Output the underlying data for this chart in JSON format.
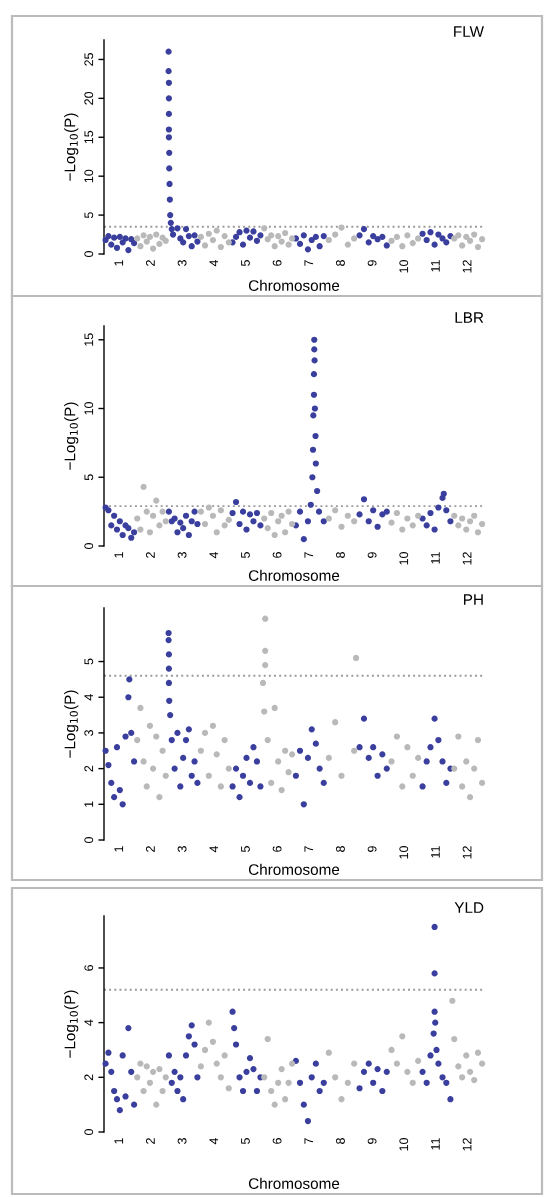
{
  "chart_data": [
    {
      "type": "scatter",
      "title": "FLW",
      "xlabel": "Chromosome",
      "ylabel": "−Log$_{10}$(P)",
      "marker": "circle",
      "grid": false,
      "xlim": [
        0.5,
        12.5
      ],
      "xticks": [
        1,
        2,
        3,
        4,
        5,
        6,
        7,
        8,
        9,
        10,
        11,
        12
      ],
      "ylim": [
        0,
        27.5
      ],
      "yticks": [
        0,
        5,
        10,
        15,
        20,
        25
      ],
      "ref_lines": [
        {
          "axis": "y",
          "value": 3.5,
          "color": "#999999",
          "line_style": "dotted"
        }
      ],
      "series": [
        {
          "color": "#3a3f9e",
          "x": [
            0.55,
            0.64,
            0.73,
            0.82,
            0.91,
            1.0,
            1.09,
            1.18,
            1.27,
            1.36,
            1.45,
            2.54,
            2.54,
            2.55,
            2.55,
            2.55,
            2.55,
            2.55,
            2.56,
            2.56,
            2.57,
            2.58,
            2.59,
            2.61,
            2.64,
            2.68,
            2.82,
            2.91,
            3.0,
            3.09,
            3.18,
            3.27,
            3.36,
            3.45,
            4.56,
            4.67,
            4.78,
            4.89,
            5,
            5.11,
            5.22,
            5.33,
            5.44,
            6.56,
            6.69,
            6.81,
            6.94,
            7.06,
            7.19,
            7.31,
            7.44,
            8.57,
            8.71,
            8.86,
            9,
            9.14,
            9.29,
            9.43,
            10.56,
            10.69,
            10.81,
            10.94,
            11.06,
            11.19,
            11.31,
            11.44
          ],
          "values": [
            1.8,
            2.3,
            1.2,
            2.1,
            0.8,
            2.2,
            1.5,
            2.0,
            0.5,
            1.9,
            1.4,
            26,
            23.5,
            22,
            20,
            18,
            16,
            15,
            13,
            11,
            9,
            7,
            5,
            4,
            3.2,
            2.5,
            3.3,
            2.0,
            1.5,
            3.2,
            2.3,
            1.0,
            2.4,
            1.6,
            1.5,
            2.2,
            2.8,
            1.2,
            3.0,
            2.1,
            2.9,
            1.7,
            2.4,
            2.0,
            1.3,
            2.4,
            0.6,
            1.8,
            2.2,
            1.0,
            2.3,
            2.4,
            3.2,
            1.5,
            2.3,
            1.9,
            2.2,
            1.1,
            2.6,
            1.8,
            2.8,
            1.2,
            2.5,
            2.0,
            1.5,
            2.3
          ]
        },
        {
          "color": "#b9b9b9",
          "x": [
            1.55,
            1.65,
            1.75,
            1.85,
            1.95,
            2.05,
            2.15,
            2.25,
            2.35,
            2.45,
            3.56,
            3.69,
            3.81,
            3.94,
            4.06,
            4.19,
            4.31,
            4.44,
            5.56,
            5.67,
            5.78,
            5.89,
            6,
            6.11,
            6.22,
            6.33,
            6.44,
            7.6,
            7.8,
            8,
            8.2,
            8.4,
            9.58,
            9.75,
            9.92,
            10.08,
            10.25,
            10.42,
            11.56,
            11.69,
            11.81,
            11.94,
            12.06,
            12.19,
            12.31,
            12.44
          ],
          "values": [
            2.0,
            1.0,
            2.4,
            1.6,
            2.2,
            0.7,
            2.5,
            1.3,
            2.1,
            1.7,
            2.2,
            1.1,
            2.6,
            1.8,
            3.0,
            0.9,
            2.3,
            1.5,
            3.3,
            1.9,
            2.4,
            1.0,
            2.3,
            1.6,
            2.7,
            1.2,
            2.0,
            1.8,
            2.5,
            3.4,
            1.2,
            2.0,
            1.7,
            2.2,
            1.0,
            2.4,
            1.4,
            2.0,
            2.0,
            2.4,
            1.1,
            2.2,
            1.7,
            2.5,
            0.9,
            1.9
          ]
        }
      ]
    },
    {
      "type": "scatter",
      "title": "LBR",
      "xlabel": "Chromosome",
      "ylabel": "−Log$_{10}$(P)",
      "marker": "circle",
      "grid": false,
      "xlim": [
        0.5,
        12.5
      ],
      "xticks": [
        1,
        2,
        3,
        4,
        5,
        6,
        7,
        8,
        9,
        10,
        11,
        12
      ],
      "ylim": [
        0,
        16
      ],
      "yticks": [
        0,
        5,
        10,
        15
      ],
      "ref_lines": [
        {
          "axis": "y",
          "value": 2.9,
          "color": "#999999",
          "line_style": "dotted"
        }
      ],
      "series": [
        {
          "color": "#3a3f9e",
          "x": [
            0.55,
            0.64,
            0.73,
            0.82,
            0.91,
            1.0,
            1.09,
            1.18,
            1.27,
            1.36,
            1.45,
            2.55,
            2.64,
            2.73,
            2.82,
            2.91,
            3.0,
            3.09,
            3.18,
            3.27,
            3.36,
            3.45,
            4.56,
            4.67,
            4.78,
            4.89,
            5,
            5.11,
            5.22,
            5.33,
            5.44,
            6.56,
            6.69,
            6.81,
            6.94,
            7.03,
            7.08,
            7.1,
            7.11,
            7.13,
            7.13,
            7.14,
            7.14,
            7.15,
            7.16,
            7.18,
            7.19,
            7.23,
            7.29,
            7.44,
            8.57,
            8.71,
            8.86,
            9,
            9.14,
            9.29,
            9.43,
            10.56,
            10.69,
            10.81,
            10.94,
            11.06,
            11.19,
            11.23,
            11.31,
            11.44
          ],
          "values": [
            2.8,
            2.6,
            1.5,
            2.2,
            1.2,
            1.8,
            0.8,
            1.5,
            1.3,
            0.6,
            1.0,
            2.5,
            1.8,
            2.0,
            1.0,
            1.7,
            1.3,
            2.2,
            0.8,
            1.8,
            2.5,
            1.6,
            2.4,
            3.2,
            1.6,
            2.5,
            1.2,
            2.3,
            1.8,
            2.4,
            1.5,
            1.5,
            2.5,
            0.5,
            1.8,
            3.0,
            5,
            7,
            9.5,
            11,
            12.5,
            14.3,
            15,
            13.5,
            10,
            8,
            6,
            4,
            2.5,
            1.8,
            2.3,
            3.4,
            1.8,
            2.6,
            1.4,
            2.3,
            2.5,
            2.0,
            1.5,
            2.4,
            1.2,
            2.8,
            3.5,
            3.8,
            2.6,
            1.8
          ]
        },
        {
          "color": "#b9b9b9",
          "x": [
            1.55,
            1.65,
            1.75,
            1.85,
            1.95,
            2.05,
            2.15,
            2.25,
            2.35,
            2.45,
            3.56,
            3.69,
            3.81,
            3.94,
            4.06,
            4.19,
            4.31,
            4.44,
            5.56,
            5.67,
            5.78,
            5.89,
            6,
            6.11,
            6.22,
            6.33,
            6.44,
            7.6,
            7.8,
            8,
            8.2,
            8.4,
            9.58,
            9.75,
            9.92,
            10.08,
            10.25,
            10.42,
            11.56,
            11.69,
            11.81,
            11.94,
            12.06,
            12.19,
            12.31,
            12.44
          ],
          "values": [
            2.0,
            1.2,
            4.3,
            2.5,
            1.0,
            2.2,
            3.3,
            1.5,
            2.5,
            1.8,
            2.5,
            1.6,
            2.8,
            2.2,
            1.0,
            2.6,
            1.5,
            1.9,
            2.0,
            1.3,
            2.4,
            0.8,
            1.8,
            2.2,
            1.0,
            2.5,
            1.6,
            2.0,
            2.6,
            1.4,
            2.2,
            1.8,
            1.7,
            2.4,
            1.2,
            2.0,
            1.5,
            2.2,
            2.2,
            1.5,
            2.0,
            1.2,
            1.8,
            2.2,
            1.0,
            1.6
          ]
        }
      ]
    },
    {
      "type": "scatter",
      "title": "PH",
      "xlabel": "Chromosome",
      "ylabel": "−Log$_{10}$(P)",
      "marker": "circle",
      "grid": false,
      "xlim": [
        0.5,
        12.5
      ],
      "xticks": [
        1,
        2,
        3,
        4,
        5,
        6,
        7,
        8,
        9,
        10,
        11,
        12
      ],
      "ylim": [
        0,
        6.5
      ],
      "yticks": [
        0,
        1,
        2,
        3,
        4,
        5
      ],
      "ref_lines": [
        {
          "axis": "y",
          "value": 4.6,
          "color": "#999999",
          "line_style": "dotted"
        }
      ],
      "series": [
        {
          "color": "#3a3f9e",
          "x": [
            0.55,
            0.64,
            0.73,
            0.82,
            0.91,
            1.0,
            1.09,
            1.18,
            1.27,
            1.3,
            1.36,
            1.45,
            2.54,
            2.54,
            2.55,
            2.55,
            2.55,
            2.56,
            2.59,
            2.64,
            2.73,
            2.82,
            2.91,
            3.0,
            3.09,
            3.18,
            3.27,
            3.36,
            3.45,
            4.56,
            4.67,
            4.78,
            4.89,
            5,
            5.11,
            5.22,
            5.33,
            5.44,
            6.56,
            6.69,
            6.81,
            6.94,
            7.06,
            7.19,
            7.31,
            7.44,
            8.57,
            8.71,
            8.86,
            9,
            9.14,
            9.29,
            9.43,
            10.56,
            10.69,
            10.81,
            10.94,
            11.06,
            11.19,
            11.31,
            11.44
          ],
          "values": [
            2.5,
            2.1,
            1.6,
            1.2,
            2.6,
            1.4,
            1.0,
            2.9,
            4.0,
            4.5,
            3.0,
            2.2,
            5.8,
            5.6,
            5.2,
            4.8,
            4.4,
            3.9,
            3.5,
            2.8,
            2.0,
            3.0,
            1.5,
            2.3,
            2.8,
            3.1,
            1.8,
            2.2,
            1.6,
            1.5,
            2.0,
            1.2,
            1.8,
            2.3,
            1.6,
            2.6,
            2.2,
            1.5,
            1.8,
            2.5,
            1.0,
            2.3,
            3.1,
            2.7,
            2.0,
            1.6,
            2.6,
            3.4,
            2.3,
            2.6,
            1.8,
            2.4,
            2.0,
            1.5,
            2.2,
            2.6,
            3.4,
            2.8,
            2.2,
            1.6,
            2.0
          ]
        },
        {
          "color": "#b9b9b9",
          "x": [
            1.55,
            1.65,
            1.75,
            1.85,
            1.95,
            2.05,
            2.15,
            2.25,
            2.35,
            2.45,
            3.56,
            3.69,
            3.81,
            3.94,
            4.06,
            4.19,
            4.31,
            4.44,
            5.59,
            5.59,
            5.59,
            5.52,
            5.56,
            5.67,
            5.78,
            5.89,
            6,
            6.11,
            6.22,
            6.33,
            6.44,
            7.6,
            7.8,
            8,
            8.46,
            8.4,
            9.58,
            9.75,
            9.92,
            10.08,
            10.25,
            10.42,
            11.56,
            11.69,
            11.81,
            11.94,
            12.06,
            12.19,
            12.31,
            12.44
          ],
          "values": [
            2.8,
            3.7,
            2.2,
            1.5,
            3.2,
            2.0,
            2.9,
            1.2,
            2.5,
            1.8,
            2.5,
            3.0,
            1.8,
            3.2,
            2.4,
            1.5,
            2.8,
            2.0,
            6.2,
            5.3,
            4.9,
            4.4,
            3.6,
            2.8,
            1.6,
            3.7,
            2.2,
            1.4,
            2.5,
            1.9,
            2.4,
            2.3,
            3.3,
            1.8,
            5.1,
            2.5,
            2.2,
            2.9,
            1.5,
            2.6,
            1.8,
            2.3,
            2.0,
            2.9,
            1.5,
            2.2,
            1.2,
            2.0,
            2.8,
            1.6
          ]
        }
      ]
    },
    {
      "type": "scatter",
      "title": "YLD",
      "xlabel": "Chromosome",
      "ylabel": "−Log$_{10}$(P)",
      "marker": "circle",
      "grid": false,
      "xlim": [
        0.5,
        12.5
      ],
      "xticks": [
        1,
        2,
        3,
        4,
        5,
        6,
        7,
        8,
        9,
        10,
        11,
        12
      ],
      "ylim": [
        0,
        7.9
      ],
      "yticks": [
        0,
        2,
        4,
        6
      ],
      "ref_lines": [
        {
          "axis": "y",
          "value": 5.2,
          "color": "#999999",
          "line_style": "dotted"
        }
      ],
      "series": [
        {
          "color": "#3a3f9e",
          "x": [
            0.55,
            0.64,
            0.73,
            0.82,
            0.91,
            1.0,
            1.09,
            1.18,
            1.27,
            1.36,
            1.45,
            2.55,
            2.64,
            2.73,
            2.82,
            2.91,
            3.0,
            3.09,
            3.18,
            3.27,
            3.36,
            3.45,
            4.56,
            4.61,
            4.67,
            4.78,
            4.89,
            5,
            5.11,
            5.22,
            5.33,
            5.44,
            6.56,
            6.69,
            6.81,
            6.94,
            7.06,
            7.19,
            7.31,
            7.44,
            8.57,
            8.71,
            8.86,
            9,
            9.14,
            9.29,
            9.43,
            10.56,
            10.69,
            10.81,
            10.91,
            10.94,
            10.94,
            10.94,
            10.96,
            11.0,
            11.06,
            11.19,
            11.31,
            11.44
          ],
          "values": [
            2.5,
            2.9,
            2.2,
            1.5,
            1.2,
            0.8,
            2.8,
            1.3,
            3.8,
            2.2,
            1.0,
            2.8,
            1.8,
            2.2,
            1.5,
            2.0,
            1.2,
            2.8,
            3.5,
            3.9,
            3.2,
            2.0,
            4.4,
            3.8,
            3.2,
            2.0,
            1.5,
            2.2,
            2.7,
            2.3,
            1.5,
            2.0,
            2.6,
            1.8,
            1.0,
            0.4,
            2.0,
            2.5,
            1.5,
            1.8,
            1.6,
            2.2,
            2.5,
            1.8,
            2.3,
            1.5,
            2.2,
            2.2,
            1.8,
            2.8,
            3.6,
            4.4,
            5.8,
            7.5,
            4.0,
            3.0,
            2.5,
            2.0,
            1.8,
            1.2
          ]
        },
        {
          "color": "#b9b9b9",
          "x": [
            1.55,
            1.65,
            1.75,
            1.85,
            1.95,
            2.05,
            2.15,
            2.25,
            2.35,
            2.45,
            3.56,
            3.69,
            3.81,
            3.94,
            4.06,
            4.19,
            4.31,
            4.44,
            5.56,
            5.67,
            5.78,
            5.89,
            6,
            6.11,
            6.22,
            6.33,
            6.44,
            7.6,
            7.8,
            8,
            8.2,
            8.4,
            9.58,
            9.75,
            9.92,
            10.08,
            10.25,
            10.42,
            11.5,
            11.56,
            11.69,
            11.81,
            11.94,
            12.06,
            12.19,
            12.31,
            12.44
          ],
          "values": [
            2.0,
            2.5,
            1.5,
            2.4,
            1.8,
            2.2,
            1.0,
            2.3,
            1.5,
            2.0,
            2.4,
            3.0,
            4.0,
            3.3,
            2.5,
            2.0,
            2.8,
            1.6,
            2.0,
            3.4,
            1.5,
            1.0,
            1.8,
            2.3,
            1.2,
            1.8,
            2.5,
            2.9,
            2.0,
            1.2,
            1.8,
            2.5,
            3.0,
            2.5,
            3.5,
            2.2,
            1.8,
            2.6,
            4.8,
            3.4,
            2.4,
            2.0,
            2.8,
            2.2,
            1.9,
            2.9,
            2.5
          ]
        }
      ]
    }
  ]
}
